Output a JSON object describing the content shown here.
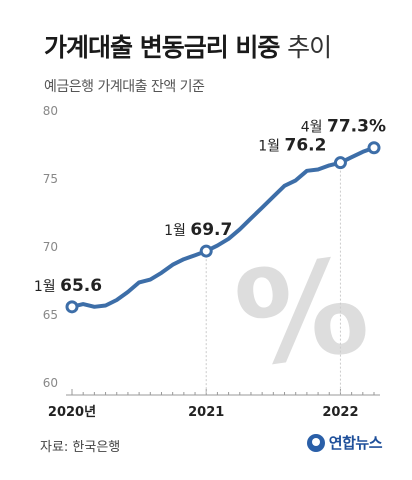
{
  "title": {
    "main": "가계대출 변동금리 비중",
    "suffix": "추이"
  },
  "subtitle": "예금은행 가계대출 잔액 기준",
  "source": "자료: 한국은행",
  "logo_text": "연합뉴스",
  "colors": {
    "line": "#3d6ea8",
    "marker_fill": "#ffffff",
    "axis_text": "#888888",
    "grid": "#cccccc",
    "percent_watermark": "#dddddd"
  },
  "chart_data": {
    "type": "line",
    "xlabel": "",
    "ylabel": "",
    "ylim": [
      60,
      80
    ],
    "yticks": [
      60,
      65,
      70,
      75,
      80
    ],
    "xticks": [
      {
        "label": "2020년",
        "x": 2020.0
      },
      {
        "label": "2021",
        "x": 2021.0
      },
      {
        "label": "2022",
        "x": 2022.0
      }
    ],
    "grid": false,
    "series": [
      {
        "values": [
          {
            "x": 2020.0,
            "y": 65.6
          },
          {
            "x": 2020.083,
            "y": 65.8
          },
          {
            "x": 2020.167,
            "y": 65.6
          },
          {
            "x": 2020.25,
            "y": 65.7
          },
          {
            "x": 2020.333,
            "y": 66.1
          },
          {
            "x": 2020.417,
            "y": 66.7
          },
          {
            "x": 2020.5,
            "y": 67.4
          },
          {
            "x": 2020.583,
            "y": 67.6
          },
          {
            "x": 2020.667,
            "y": 68.1
          },
          {
            "x": 2020.75,
            "y": 68.7
          },
          {
            "x": 2020.833,
            "y": 69.1
          },
          {
            "x": 2020.917,
            "y": 69.4
          },
          {
            "x": 2021.0,
            "y": 69.7
          },
          {
            "x": 2021.083,
            "y": 70.1
          },
          {
            "x": 2021.167,
            "y": 70.6
          },
          {
            "x": 2021.25,
            "y": 71.3
          },
          {
            "x": 2021.333,
            "y": 72.1
          },
          {
            "x": 2021.417,
            "y": 72.9
          },
          {
            "x": 2021.5,
            "y": 73.7
          },
          {
            "x": 2021.583,
            "y": 74.5
          },
          {
            "x": 2021.667,
            "y": 74.9
          },
          {
            "x": 2021.75,
            "y": 75.6
          },
          {
            "x": 2021.833,
            "y": 75.7
          },
          {
            "x": 2021.917,
            "y": 76.0
          },
          {
            "x": 2022.0,
            "y": 76.2
          },
          {
            "x": 2022.083,
            "y": 76.6
          },
          {
            "x": 2022.167,
            "y": 77.0
          },
          {
            "x": 2022.25,
            "y": 77.3
          }
        ]
      }
    ],
    "annotations": [
      {
        "month": "1월",
        "value": "65.6",
        "x": 2020.0,
        "y": 65.6
      },
      {
        "month": "1월",
        "value": "69.7",
        "x": 2021.0,
        "y": 69.7
      },
      {
        "month": "1월",
        "value": "76.2",
        "x": 2022.0,
        "y": 76.2
      },
      {
        "month": "4월",
        "value": "77.3%",
        "x": 2022.25,
        "y": 77.3
      }
    ],
    "watermark": "%"
  }
}
